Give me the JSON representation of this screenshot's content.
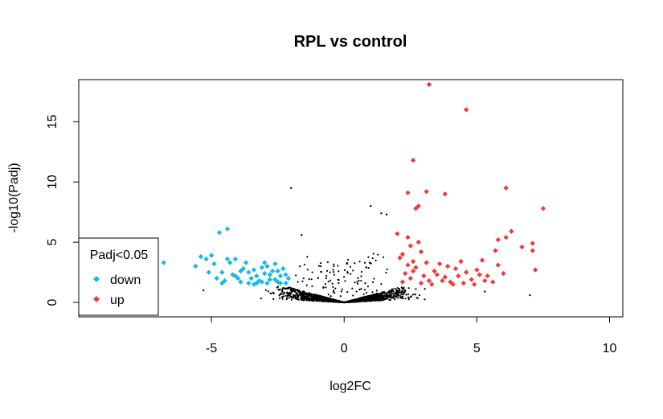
{
  "chart_data": {
    "type": "scatter",
    "title": "RPL vs control",
    "xlabel": "log2FC",
    "ylabel": "-log10(Padj)",
    "xlim": [
      -10,
      10.5
    ],
    "ylim": [
      -1.2,
      18.5
    ],
    "x_ticks": [
      -5,
      0,
      5,
      10
    ],
    "y_ticks": [
      0,
      5,
      10,
      15
    ],
    "grid": false,
    "legend": {
      "placement": "bottom-left",
      "title": "Padj<0.05",
      "entries": [
        {
          "label": "down",
          "color": "#1ab8e8"
        },
        {
          "label": "up",
          "color": "#f03c3c"
        }
      ]
    },
    "series": [
      {
        "name": "down",
        "color": "#1ab8e8",
        "points": [
          [
            -6.8,
            3.3
          ],
          [
            -5.6,
            3.0
          ],
          [
            -5.4,
            3.8
          ],
          [
            -5.2,
            3.6
          ],
          [
            -5.0,
            3.9
          ],
          [
            -4.9,
            3.2
          ],
          [
            -5.1,
            2.5
          ],
          [
            -4.8,
            2.0
          ],
          [
            -4.6,
            2.5
          ],
          [
            -4.5,
            1.8
          ],
          [
            -4.4,
            3.6
          ],
          [
            -4.3,
            3.3
          ],
          [
            -4.2,
            2.3
          ],
          [
            -4.1,
            3.6
          ],
          [
            -4.0,
            2.0
          ],
          [
            -3.9,
            1.7
          ],
          [
            -3.8,
            2.8
          ],
          [
            -3.7,
            3.3
          ],
          [
            -3.6,
            2.5
          ],
          [
            -3.5,
            2.0
          ],
          [
            -3.4,
            1.5
          ],
          [
            -3.3,
            2.2
          ],
          [
            -3.2,
            1.8
          ],
          [
            -3.1,
            2.9
          ],
          [
            -3.0,
            2.4
          ],
          [
            -2.9,
            3.0
          ],
          [
            -2.8,
            1.9
          ],
          [
            -2.7,
            2.6
          ],
          [
            -2.6,
            3.2
          ],
          [
            -2.5,
            1.7
          ],
          [
            -2.4,
            2.2
          ],
          [
            -2.3,
            2.8
          ],
          [
            -2.2,
            1.6
          ],
          [
            -2.1,
            2.0
          ],
          [
            -4.4,
            6.1
          ],
          [
            -4.7,
            5.8
          ],
          [
            -4.1,
            2.2
          ],
          [
            -3.9,
            2.6
          ],
          [
            -3.6,
            1.6
          ],
          [
            -3.3,
            1.6
          ],
          [
            -2.9,
            1.6
          ],
          [
            -2.6,
            1.9
          ],
          [
            -2.4,
            1.6
          ],
          [
            -2.2,
            2.3
          ],
          [
            -3.4,
            2.7
          ],
          [
            -4.6,
            1.6
          ],
          [
            -2.8,
            2.3
          ],
          [
            -3.1,
            1.7
          ],
          [
            -3.0,
            3.3
          ],
          [
            -2.5,
            2.6
          ]
        ]
      },
      {
        "name": "up",
        "color": "#f03c3c",
        "points": [
          [
            3.2,
            18.1
          ],
          [
            4.6,
            16.0
          ],
          [
            2.6,
            11.8
          ],
          [
            2.4,
            9.1
          ],
          [
            3.1,
            9.2
          ],
          [
            3.8,
            9.0
          ],
          [
            2.8,
            8.0
          ],
          [
            2.7,
            7.8
          ],
          [
            6.1,
            9.5
          ],
          [
            7.5,
            7.8
          ],
          [
            6.3,
            5.9
          ],
          [
            6.1,
            5.4
          ],
          [
            6.7,
            4.6
          ],
          [
            7.1,
            4.9
          ],
          [
            5.8,
            5.2
          ],
          [
            5.7,
            4.3
          ],
          [
            7.2,
            2.7
          ],
          [
            7.1,
            4.3
          ],
          [
            2.0,
            5.7
          ],
          [
            2.4,
            5.4
          ],
          [
            2.8,
            5.0
          ],
          [
            2.5,
            4.7
          ],
          [
            2.2,
            4.0
          ],
          [
            2.9,
            4.2
          ],
          [
            2.6,
            3.4
          ],
          [
            2.1,
            3.7
          ],
          [
            2.3,
            2.4
          ],
          [
            2.7,
            2.9
          ],
          [
            3.0,
            2.2
          ],
          [
            3.2,
            1.8
          ],
          [
            3.4,
            2.6
          ],
          [
            3.6,
            3.2
          ],
          [
            3.8,
            2.1
          ],
          [
            4.0,
            1.7
          ],
          [
            4.2,
            2.8
          ],
          [
            4.4,
            3.4
          ],
          [
            4.6,
            2.5
          ],
          [
            4.8,
            1.9
          ],
          [
            5.0,
            2.7
          ],
          [
            5.2,
            3.5
          ],
          [
            5.4,
            2.2
          ],
          [
            5.6,
            1.7
          ],
          [
            5.8,
            3.1
          ],
          [
            6.0,
            2.4
          ],
          [
            2.2,
            1.7
          ],
          [
            2.5,
            2.0
          ],
          [
            2.9,
            1.6
          ],
          [
            3.3,
            1.5
          ],
          [
            3.7,
            1.8
          ],
          [
            4.1,
            1.5
          ],
          [
            4.5,
            1.6
          ],
          [
            4.9,
            1.5
          ],
          [
            5.3,
            1.8
          ],
          [
            3.5,
            2.3
          ],
          [
            3.9,
            3.0
          ],
          [
            4.3,
            2.2
          ],
          [
            2.4,
            3.1
          ],
          [
            2.6,
            2.6
          ],
          [
            3.1,
            3.3
          ],
          [
            5.1,
            2.3
          ]
        ]
      }
    ]
  }
}
